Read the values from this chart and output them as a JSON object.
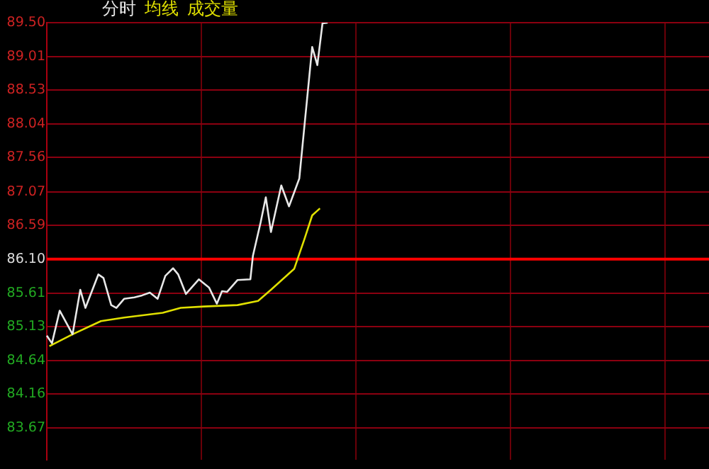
{
  "chart_data": {
    "type": "line",
    "grid": true,
    "tick_labels": "y",
    "marker": "none",
    "line_style": "solid",
    "categories": [
      null,
      null,
      null,
      null,
      null,
      null,
      null,
      null,
      null,
      null,
      null,
      null,
      null,
      null,
      null,
      null,
      null,
      null,
      null,
      null,
      null,
      null,
      null,
      null,
      null,
      null,
      null,
      null,
      null,
      null,
      null,
      null,
      null,
      null,
      null,
      null,
      null,
      null,
      null,
      null,
      null,
      null,
      null,
      null,
      null,
      null,
      null,
      null,
      null,
      null,
      null,
      null,
      null,
      null,
      null,
      null,
      null,
      null,
      null,
      null,
      null,
      null,
      null,
      null,
      null,
      null,
      null,
      null,
      null,
      null,
      null,
      null,
      null,
      null,
      null,
      null,
      null,
      null,
      null,
      null,
      null,
      null,
      null,
      null,
      null,
      null,
      null,
      null,
      null,
      null,
      null,
      null,
      null,
      null,
      null,
      null,
      null,
      null,
      null,
      null,
      null,
      null,
      null,
      null,
      null,
      null,
      null,
      null,
      null,
      null,
      null,
      null,
      null,
      null,
      null,
      null,
      null,
      null,
      null,
      null,
      null,
      null,
      null,
      null,
      null,
      null,
      null,
      null,
      null,
      null,
      null,
      null,
      null,
      null,
      null,
      null,
      null,
      null,
      null,
      null,
      null,
      null,
      null,
      null,
      null,
      null,
      null,
      null,
      null,
      null,
      null,
      null,
      null,
      null,
      null,
      null,
      null,
      null,
      null,
      null,
      null,
      null,
      null,
      null,
      null,
      null,
      null,
      null,
      null,
      null,
      null,
      null,
      null,
      null,
      null,
      null,
      null,
      null,
      null,
      null,
      null,
      null,
      null,
      null,
      null,
      null,
      null,
      null,
      null,
      null,
      null,
      null,
      null,
      null,
      null,
      null,
      null,
      null,
      null,
      null,
      null,
      null,
      null,
      null,
      null,
      null,
      null,
      null,
      null,
      null,
      null,
      null,
      null,
      null,
      null,
      null,
      null,
      null,
      null,
      null,
      null,
      null,
      null,
      null,
      null,
      null,
      null,
      null,
      null,
      null,
      null,
      null,
      null,
      null,
      null,
      null,
      null,
      null,
      null,
      null,
      null,
      null,
      null,
      null,
      null,
      null,
      null,
      null,
      null,
      null,
      null,
      null,
      null,
      null,
      null,
      null,
      null,
      null
    ],
    "ylim": [
      83.22,
      89.5
    ],
    "yticks": [
      {
        "value": 83.67,
        "label": "83.67"
      },
      {
        "value": 84.16,
        "label": "84.16"
      },
      {
        "value": 84.64,
        "label": "84.64"
      },
      {
        "value": 85.13,
        "label": "85.13"
      },
      {
        "value": 85.61,
        "label": "85.61"
      },
      {
        "value": 86.1,
        "label": "86.10"
      },
      {
        "value": 86.59,
        "label": "86.59"
      },
      {
        "value": 87.07,
        "label": "87.07"
      },
      {
        "value": 87.56,
        "label": "87.56"
      },
      {
        "value": 88.04,
        "label": "88.04"
      },
      {
        "value": 88.53,
        "label": "88.53"
      },
      {
        "value": 89.01,
        "label": "89.01"
      },
      {
        "value": 89.5,
        "label": "89.50"
      }
    ],
    "ref_lines": [
      {
        "axis": "y",
        "value": 86.1,
        "color": "#ff0000"
      }
    ],
    "annotations": [
      "成交量"
    ],
    "series": [
      {
        "name": "分时",
        "color": "#e8e8e8",
        "values": [
          85.0,
          null,
          84.89,
          null,
          null,
          85.36,
          null,
          null,
          null,
          null,
          85.02,
          null,
          null,
          85.66,
          null,
          85.4,
          null,
          null,
          null,
          null,
          85.88,
          null,
          85.83,
          null,
          null,
          85.44,
          null,
          85.4,
          null,
          null,
          85.53,
          null,
          null,
          null,
          85.55,
          null,
          null,
          85.58,
          null,
          null,
          85.62,
          null,
          null,
          85.53,
          null,
          null,
          85.86,
          null,
          null,
          85.97,
          null,
          85.88,
          null,
          null,
          85.6,
          null,
          null,
          null,
          null,
          85.81,
          null,
          null,
          null,
          85.69,
          null,
          null,
          85.46,
          null,
          85.64,
          null,
          85.63,
          null,
          null,
          null,
          85.8,
          null,
          null,
          null,
          null,
          85.81,
          86.15,
          null,
          null,
          86.63,
          null,
          86.99,
          null,
          86.49,
          null,
          null,
          null,
          87.16,
          null,
          null,
          86.86,
          null,
          null,
          null,
          87.26,
          null,
          88.02,
          null,
          null,
          89.15,
          null,
          88.89,
          null,
          89.49,
          null,
          89.5,
          null,
          null,
          null,
          null,
          null,
          null,
          null,
          null,
          null,
          null,
          null,
          null,
          null,
          null,
          null,
          null,
          null,
          null,
          null,
          null,
          null,
          null,
          null,
          null,
          null,
          null,
          null,
          null,
          null,
          null,
          null,
          null,
          null,
          null,
          null,
          null,
          null,
          null,
          null,
          null,
          null,
          null,
          null,
          null,
          null,
          null,
          null,
          null,
          null,
          null,
          null,
          null,
          null,
          null,
          null,
          null,
          null,
          null,
          null,
          null,
          null,
          null,
          null,
          null,
          null,
          null,
          null,
          null,
          null,
          null,
          null,
          null,
          null,
          null,
          null,
          null,
          null,
          null,
          null,
          null,
          null,
          null,
          null,
          null,
          null,
          null,
          null,
          null,
          null,
          null,
          null,
          null,
          null,
          null,
          null,
          null,
          null,
          null,
          null,
          null,
          null,
          null,
          null,
          null,
          null,
          null,
          null,
          null,
          null,
          null,
          null,
          null,
          null,
          null,
          null,
          null,
          null,
          null,
          null,
          null,
          null,
          null,
          null,
          null,
          null,
          null,
          null,
          null,
          null,
          null,
          null,
          null,
          null,
          null,
          null,
          null,
          null,
          null,
          null,
          null,
          null,
          null,
          null,
          null,
          null,
          null,
          null,
          null
        ]
      },
      {
        "name": "均线",
        "color": "#e0e000",
        "values": [
          null,
          84.85,
          null,
          null,
          null,
          null,
          null,
          null,
          null,
          null,
          85.02,
          null,
          null,
          null,
          null,
          null,
          null,
          null,
          null,
          null,
          null,
          85.21,
          null,
          null,
          null,
          null,
          null,
          null,
          null,
          null,
          85.26,
          null,
          null,
          null,
          null,
          null,
          null,
          null,
          null,
          null,
          null,
          null,
          null,
          null,
          null,
          85.33,
          null,
          null,
          null,
          null,
          null,
          null,
          85.4,
          null,
          null,
          null,
          null,
          null,
          null,
          null,
          null,
          85.42,
          null,
          null,
          null,
          null,
          null,
          null,
          null,
          null,
          null,
          null,
          null,
          null,
          85.44,
          null,
          null,
          null,
          null,
          null,
          null,
          null,
          85.5,
          null,
          null,
          null,
          null,
          85.66,
          null,
          null,
          null,
          null,
          null,
          null,
          null,
          null,
          85.96,
          null,
          null,
          null,
          86.39,
          null,
          null,
          86.73,
          null,
          null,
          86.83,
          null,
          null,
          null,
          null,
          null,
          null,
          null,
          null,
          null,
          null,
          null,
          null,
          null,
          null,
          null,
          null,
          null,
          null,
          null,
          null,
          null,
          null,
          null,
          null,
          null,
          null,
          null,
          null,
          null,
          null,
          null,
          null,
          null,
          null,
          null,
          null,
          null,
          null,
          null,
          null,
          null,
          null,
          null,
          null,
          null,
          null,
          null,
          null,
          null,
          null,
          null,
          null,
          null,
          null,
          null,
          null,
          null,
          null,
          null,
          null,
          null,
          null,
          null,
          null,
          null,
          null,
          null,
          null,
          null,
          null,
          null,
          null,
          null,
          null,
          null,
          null,
          null,
          null,
          null,
          null,
          null,
          null,
          null,
          null,
          null,
          null,
          null,
          null,
          null,
          null,
          null,
          null,
          null,
          null,
          null,
          null,
          null,
          null,
          null,
          null,
          null,
          null,
          null,
          null,
          null,
          null,
          null,
          null,
          null,
          null,
          null,
          null,
          null,
          null,
          null,
          null,
          null,
          null,
          null,
          null,
          null,
          null,
          null,
          null,
          null,
          null,
          null,
          null,
          null,
          null,
          null,
          null,
          null,
          null,
          null,
          null,
          null,
          null,
          null,
          null,
          null,
          null,
          null,
          null,
          null,
          null,
          null,
          null,
          null,
          null,
          null
        ]
      }
    ]
  }
}
